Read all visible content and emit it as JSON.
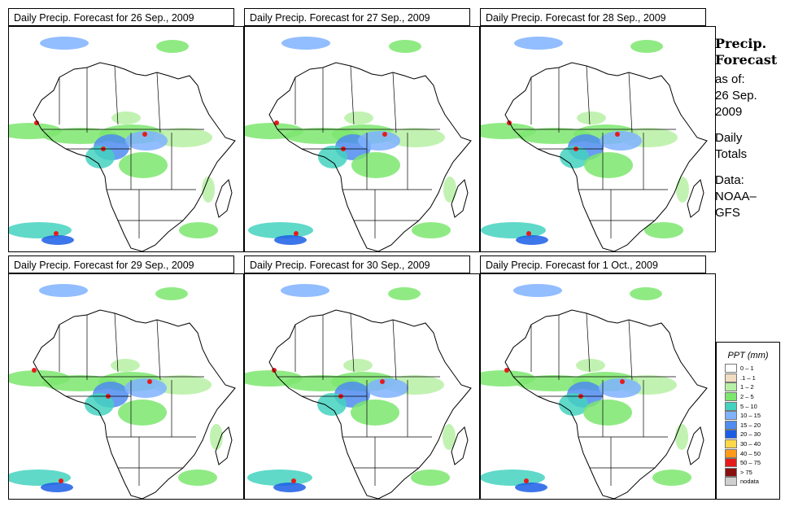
{
  "panels": [
    {
      "title": "Daily Precip. Forecast for  26 Sep., 2009",
      "date": "26 Sep., 2009"
    },
    {
      "title": "Daily Precip. Forecast for  27 Sep., 2009",
      "date": "27 Sep., 2009"
    },
    {
      "title": "Daily Precip. Forecast for  28 Sep., 2009",
      "date": "28 Sep., 2009"
    },
    {
      "title": "Daily Precip. Forecast for  29 Sep., 2009",
      "date": "29 Sep., 2009"
    },
    {
      "title": "Daily Precip. Forecast for  30 Sep., 2009",
      "date": "30 Sep., 2009"
    },
    {
      "title": "Daily Precip. Forecast for  1 Oct., 2009",
      "date": "1 Oct., 2009"
    }
  ],
  "side": {
    "title_line1": "Precip.",
    "title_line2": "Forecast",
    "as_of": "as of:",
    "date_line1": "26 Sep.",
    "date_line2": "2009",
    "daily": "Daily",
    "totals": "Totals",
    "data_label": "Data:",
    "source1": "NOAA–",
    "source2": "GFS"
  },
  "legend": {
    "title": "PPT (mm)",
    "items": [
      {
        "label": "0 – 1",
        "color": "#ffffff"
      },
      {
        "label": ".1 – 1",
        "color": "#f0dcc0"
      },
      {
        "label": "1 – 2",
        "color": "#b7f0a5"
      },
      {
        "label": "2 – 5",
        "color": "#7ce66e"
      },
      {
        "label": "5 – 10",
        "color": "#44d2c0"
      },
      {
        "label": "10 – 15",
        "color": "#7fb2ff"
      },
      {
        "label": "15 – 20",
        "color": "#4f8cf0"
      },
      {
        "label": "20 – 30",
        "color": "#1b5ee6"
      },
      {
        "label": "30 – 40",
        "color": "#ffd84a"
      },
      {
        "label": "40 – 50",
        "color": "#ff9a1a"
      },
      {
        "label": "50 – 75",
        "color": "#e61b1b"
      },
      {
        "label": "> 75",
        "color": "#8a1010"
      },
      {
        "label": "nodata",
        "color": "#cfcfcf"
      }
    ]
  }
}
